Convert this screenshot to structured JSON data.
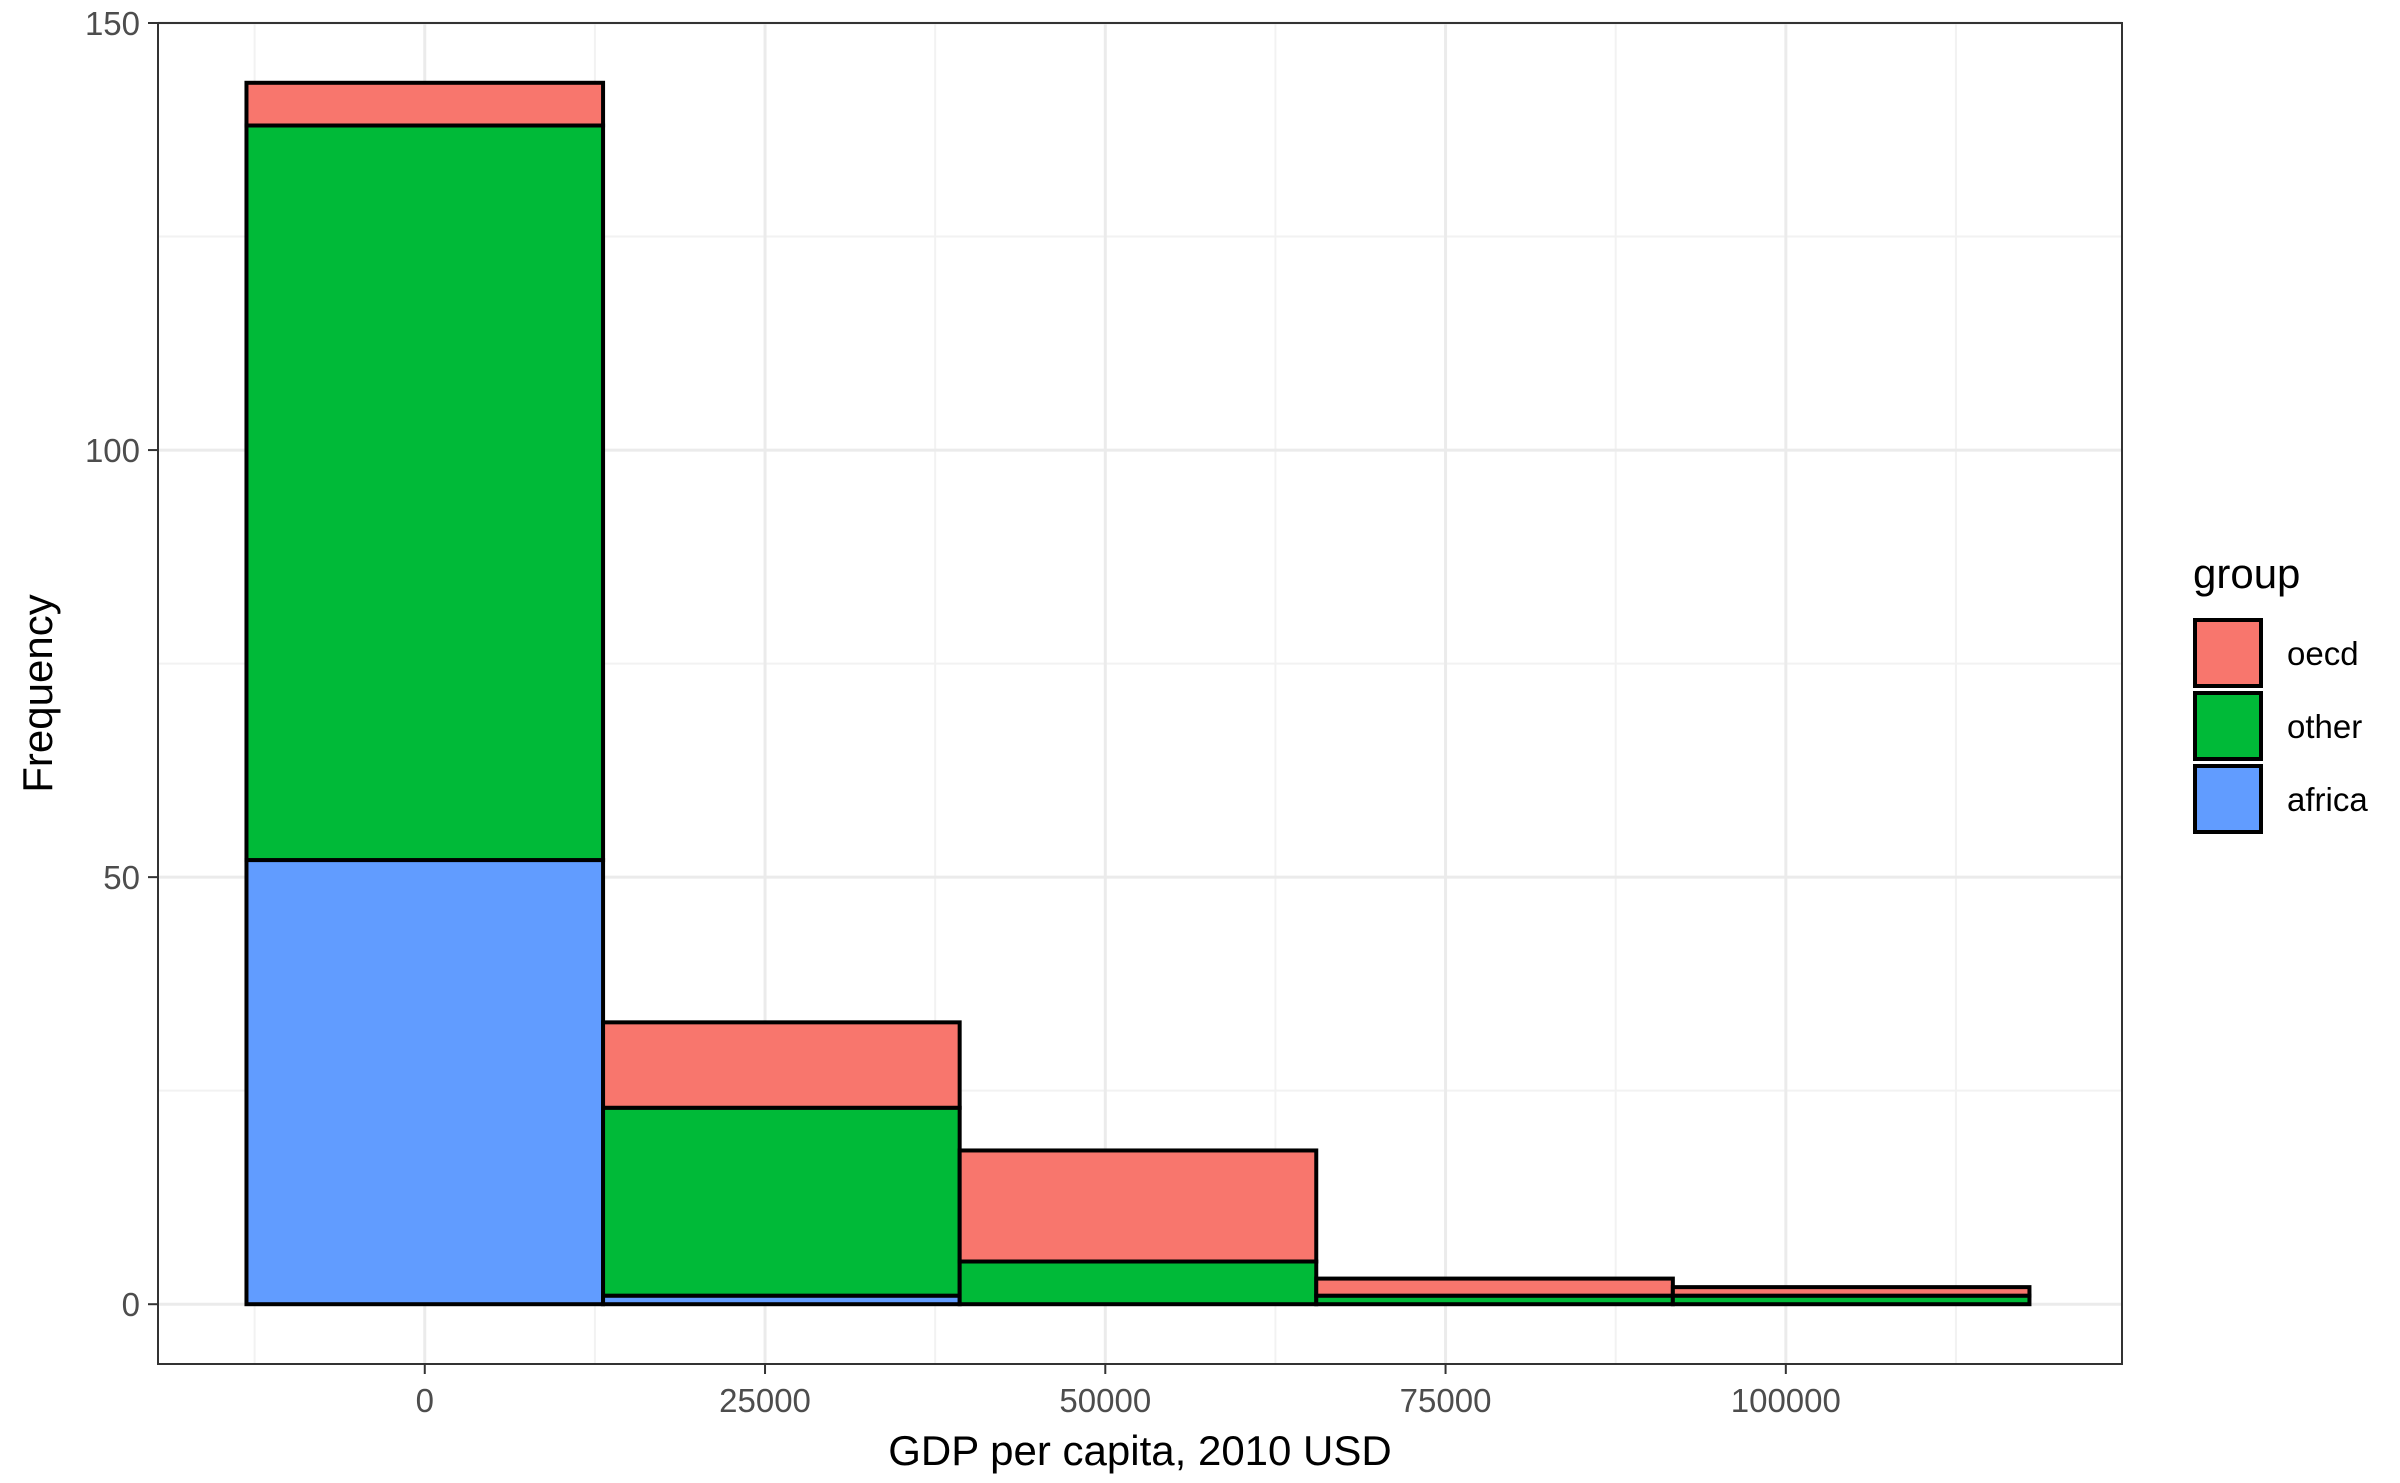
{
  "chart_data": {
    "type": "bar",
    "stacked": true,
    "histogram": true,
    "xlabel": "GDP per capita, 2010 USD",
    "ylabel": "Frequency",
    "xlim": [
      -19600,
      124700
    ],
    "ylim": [
      -7,
      150
    ],
    "x_ticks": [
      0,
      25000,
      50000,
      75000,
      100000
    ],
    "x_tick_labels": [
      "0",
      "25000",
      "50000",
      "75000",
      "100000"
    ],
    "y_ticks": [
      0,
      50,
      100,
      150
    ],
    "y_tick_labels": [
      "0",
      "50",
      "100",
      "150"
    ],
    "grid": true,
    "bins": [
      {
        "x0": -13100,
        "x1": 13100
      },
      {
        "x0": 13100,
        "x1": 39300
      },
      {
        "x0": 39300,
        "x1": 65500
      },
      {
        "x0": 65500,
        "x1": 91700
      },
      {
        "x0": 91700,
        "x1": 117900
      }
    ],
    "series": [
      {
        "name": "africa",
        "color": "#619CFF",
        "values": [
          52,
          1,
          0,
          0,
          0
        ]
      },
      {
        "name": "other",
        "color": "#00BA38",
        "values": [
          86,
          22,
          5,
          1,
          1
        ]
      },
      {
        "name": "oecd",
        "color": "#F8766D",
        "values": [
          5,
          10,
          13,
          2,
          1
        ]
      }
    ],
    "legend": {
      "title": "group",
      "position": "right",
      "entries": [
        {
          "label": "oecd",
          "color": "#F8766D"
        },
        {
          "label": "other",
          "color": "#00BA38"
        },
        {
          "label": "africa",
          "color": "#619CFF"
        }
      ]
    }
  }
}
